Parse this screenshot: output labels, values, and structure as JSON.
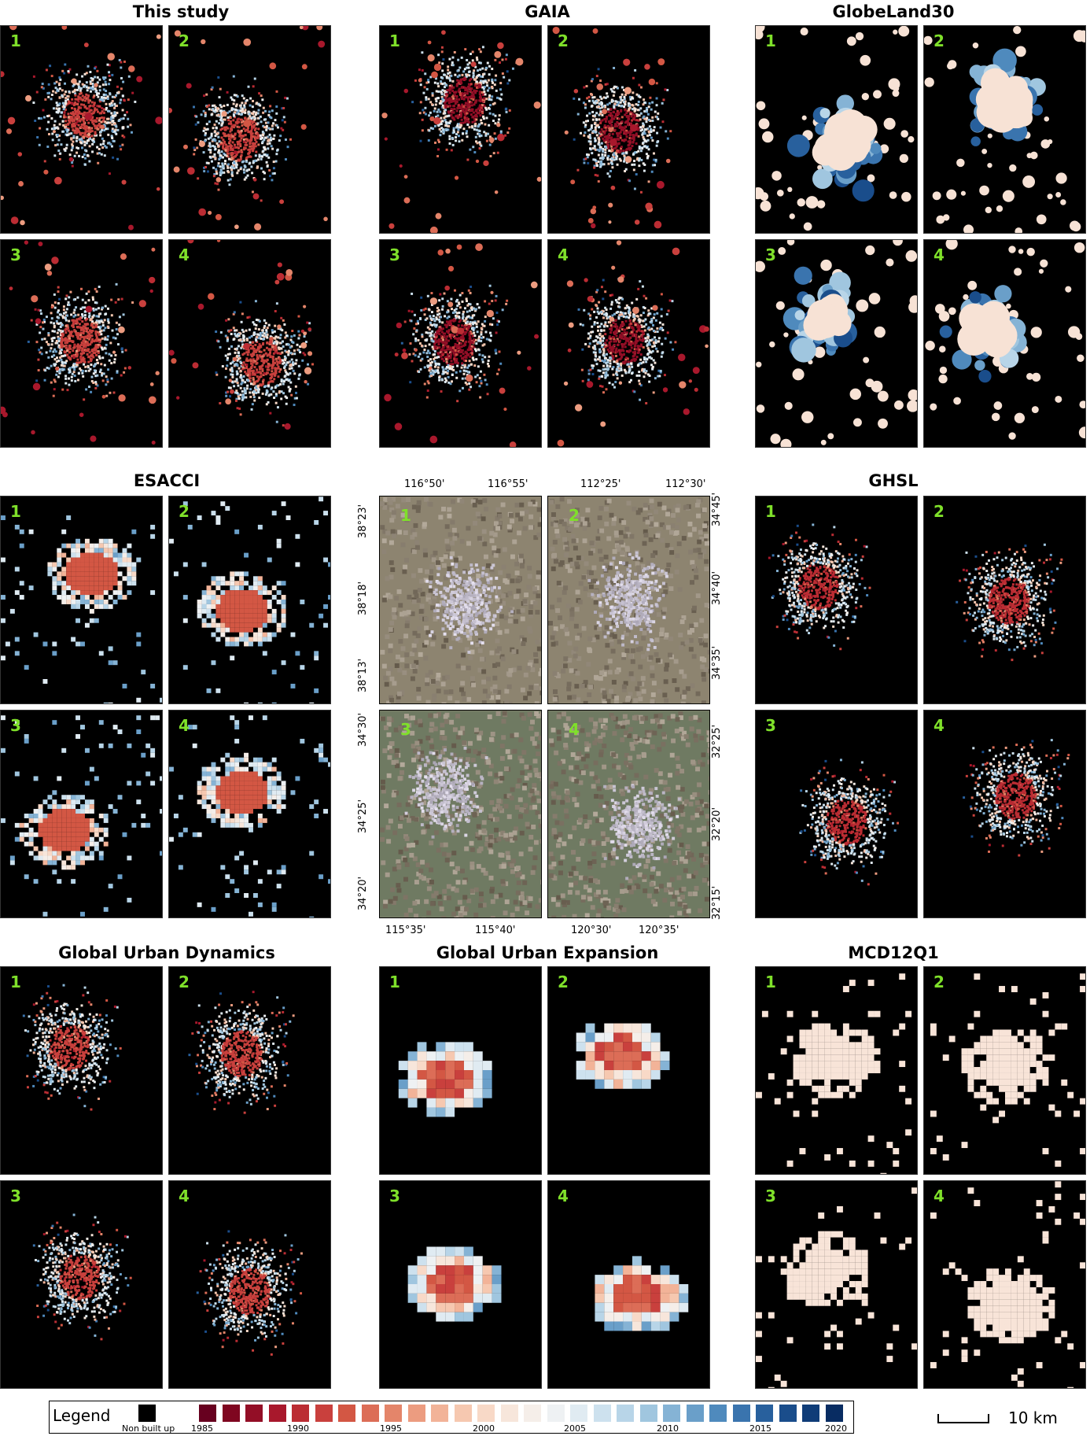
{
  "datasets": [
    {
      "title": "This study"
    },
    {
      "title": "GAIA"
    },
    {
      "title": "GlobeLand30"
    },
    {
      "title": "ESACCI"
    },
    {
      "title": "GHSL"
    },
    {
      "title": "Global Urban Dynamics"
    },
    {
      "title": "Global Urban Expansion"
    },
    {
      "title": "MCD12Q1"
    }
  ],
  "panel_numbers": [
    "1",
    "2",
    "3",
    "4"
  ],
  "satellite": {
    "top_lon_left": [
      "116°50'",
      "116°55'"
    ],
    "top_lon_right": [
      "112°25'",
      "112°30'"
    ],
    "bottom_lon_left": [
      "115°35'",
      "115°40'"
    ],
    "bottom_lon_right": [
      "120°30'",
      "120°35'"
    ],
    "lat_left_top": [
      "38°23'",
      "38°18'",
      "38°13'"
    ],
    "lat_left_bottom": [
      "34°30'",
      "34°25'",
      "34°20'"
    ],
    "lat_right_top": [
      "34°45'",
      "34°40'",
      "34°35'"
    ],
    "lat_right_bottom": [
      "32°25'",
      "32°20'",
      "32°15'"
    ]
  },
  "legend": {
    "title": "Legend",
    "non_built_label": "Non built up",
    "years": [
      "1985",
      "1990",
      "1995",
      "2000",
      "2005",
      "2010",
      "2015",
      "2020"
    ],
    "ramp_colors": [
      "#67001f",
      "#7f0620",
      "#930e26",
      "#a8182c",
      "#bb2c33",
      "#c9403d",
      "#d35744",
      "#dc6d57",
      "#e4856a",
      "#ec9c80",
      "#f2b398",
      "#f6c8b0",
      "#f8d9c7",
      "#f7e6db",
      "#f5eee9",
      "#eef1f3",
      "#e0ebf2",
      "#cde1ee",
      "#b8d5e8",
      "#a0c6df",
      "#85b3d5",
      "#6a9fc9",
      "#4f8abd",
      "#3a74ae",
      "#28609d",
      "#1a4d8b",
      "#0f3c78",
      "#082c62"
    ]
  },
  "scale": {
    "label": "10 km"
  }
}
